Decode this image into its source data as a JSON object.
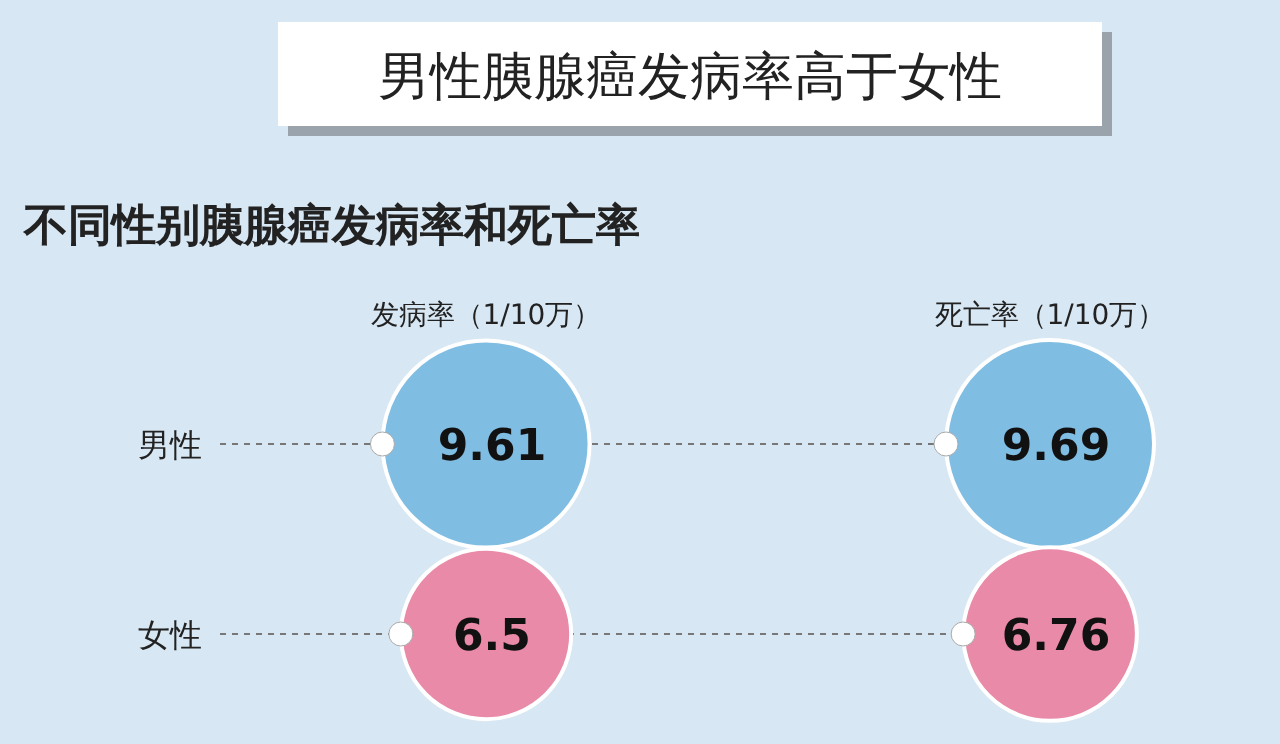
{
  "chart_data": {
    "type": "other",
    "title": "男性胰腺癌发病率高于女性",
    "subtitle": "不同性别胰腺癌发病率和死亡率",
    "categories": [
      "发病率（1/10万）",
      "死亡率（1/10万）"
    ],
    "series": [
      {
        "name": "男性",
        "color": "#80bde3",
        "values": [
          9.61,
          9.69
        ]
      },
      {
        "name": "女性",
        "color": "#e88aa8",
        "values": [
          6.5,
          6.76
        ]
      }
    ],
    "data_labels": true
  }
}
